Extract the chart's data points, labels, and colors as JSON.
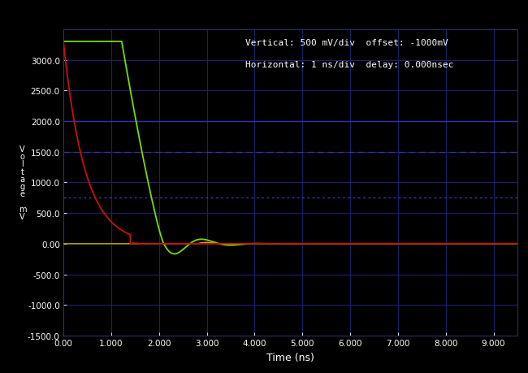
{
  "title_text1": "Vertical: 500 mV/div  offset: -1000mV",
  "title_text2": "Horizontal: 1 ns/div  delay: 0.000nsec",
  "xlabel": "Time (ns)",
  "ylabel": "V\no\nl\nt\na\ng\ne\n \nm\nV",
  "background_color": "#000000",
  "grid_color": "#1a1a6a",
  "text_color": "#ffffff",
  "xlim": [
    0.0,
    9.5
  ],
  "ylim": [
    -1500.0,
    3500.0
  ],
  "xticks": [
    0.0,
    1.0,
    2.0,
    3.0,
    4.0,
    5.0,
    6.0,
    7.0,
    8.0,
    9.0
  ],
  "xtick_labels": [
    "0.00",
    "1.000",
    "2.000",
    "3.000",
    "4.000",
    "5.000",
    "6.000",
    "7.000",
    "8.000",
    "9.000"
  ],
  "yticks": [
    -1500.0,
    -1000.0,
    -500.0,
    0.0,
    500.0,
    1000.0,
    1500.0,
    2000.0,
    2500.0,
    3000.0
  ],
  "ytick_labels": [
    "-1500.0",
    "-1000.0",
    "-500.0",
    "0.00",
    "500.0",
    "1000.0",
    "1500.0",
    "2000.0",
    "2500.0",
    "3000.0"
  ],
  "red_color": "#cc1100",
  "green_color": "#77dd00",
  "yellow_color": "#ccaa00",
  "hline_solid_2000": 2000.0,
  "hline_dashed_1500": 1500.0,
  "hline_dotted_750": 750.0
}
